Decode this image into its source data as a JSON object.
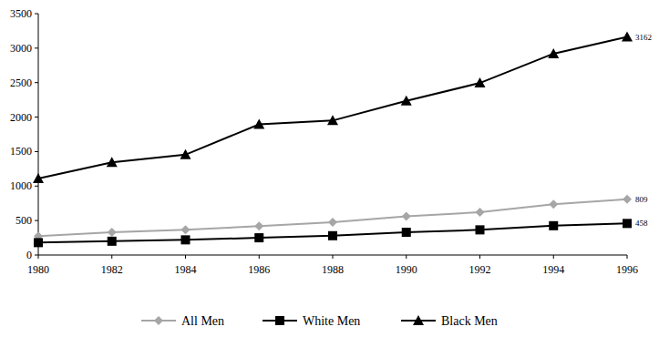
{
  "chart_data": {
    "type": "line",
    "x": [
      1980,
      1982,
      1984,
      1986,
      1988,
      1990,
      1992,
      1994,
      1996
    ],
    "xlim": [
      1980,
      1996
    ],
    "xticks": [
      1980,
      1982,
      1984,
      1986,
      1988,
      1990,
      1992,
      1994,
      1996
    ],
    "ylim": [
      0,
      3500
    ],
    "yticks": [
      0,
      500,
      1000,
      1500,
      2000,
      2500,
      3000,
      3500
    ],
    "grid": false,
    "legend": "bottom",
    "series": [
      {
        "name": "All Men",
        "color": "#a6a6a6",
        "marker": "diamond",
        "line_style": "solid",
        "values": [
          275,
          330,
          365,
          420,
          475,
          560,
          620,
          735,
          809
        ],
        "value_labels": [
          null,
          null,
          null,
          null,
          null,
          null,
          null,
          null,
          "809"
        ]
      },
      {
        "name": "White Men",
        "color": "#000000",
        "marker": "square",
        "line_style": "solid",
        "values": [
          180,
          200,
          220,
          250,
          280,
          330,
          365,
          425,
          458
        ],
        "value_labels": [
          null,
          null,
          null,
          null,
          null,
          null,
          null,
          null,
          "458"
        ]
      },
      {
        "name": "Black Men",
        "color": "#000000",
        "marker": "triangle",
        "line_style": "solid",
        "values": [
          1110,
          1345,
          1455,
          1895,
          1950,
          2235,
          2495,
          2920,
          3162
        ],
        "value_labels": [
          null,
          null,
          null,
          null,
          null,
          null,
          null,
          null,
          "3162"
        ]
      }
    ]
  }
}
